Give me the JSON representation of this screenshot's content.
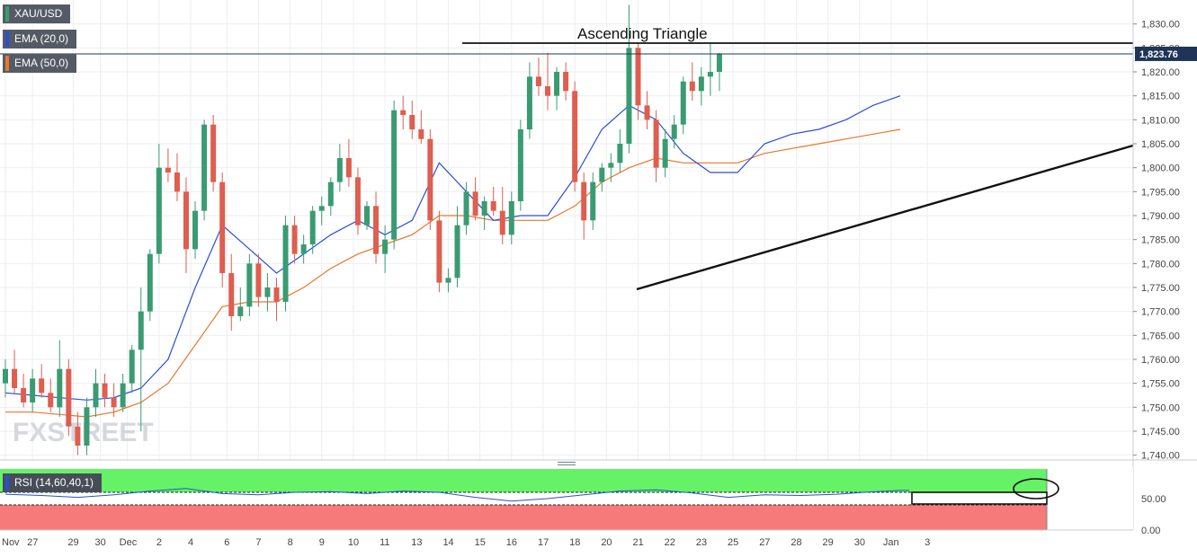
{
  "symbol": "XAU/USD",
  "indicators": [
    {
      "label": "EMA (20,0)",
      "color": "#2a4fd6"
    },
    {
      "label": "EMA (50,0)",
      "color": "#e8772e"
    }
  ],
  "annotation": "Ascending Triangle",
  "watermark": "FXSTREET",
  "current_price": "1,823.76",
  "rsi_label": "RSI (14,60,40,1)",
  "colors": {
    "bull": "#3a9b72",
    "bear": "#de5e4f",
    "ema20": "#2a4fd6",
    "ema50": "#e8772e",
    "rsi_line": "#2a4fd6",
    "rsi_upper": "#66f266",
    "rsi_lower": "#f77a7a",
    "price_badge": "#1f3557"
  },
  "chart_data": {
    "type": "candlestick",
    "instrument": "XAU/USD",
    "y_ticks": [
      "1,830.00",
      "1,825.00",
      "1,820.00",
      "1,815.00",
      "1,810.00",
      "1,805.00",
      "1,800.00",
      "1,795.00",
      "1,790.00",
      "1,785.00",
      "1,780.00",
      "1,775.00",
      "1,770.00",
      "1,765.00",
      "1,760.00",
      "1,755.00",
      "1,750.00",
      "1,745.00",
      "1,740.00"
    ],
    "y_tick_values": [
      1830,
      1825,
      1820,
      1815,
      1810,
      1805,
      1800,
      1795,
      1790,
      1785,
      1780,
      1775,
      1770,
      1765,
      1760,
      1755,
      1750,
      1745,
      1740
    ],
    "x_labels": [
      "Nov",
      "27",
      "29",
      "30",
      "Dec",
      "2",
      "4",
      "6",
      "7",
      "8",
      "9",
      "10",
      "11",
      "13",
      "14",
      "15",
      "16",
      "17",
      "18",
      "20",
      "21",
      "22",
      "23",
      "25",
      "27",
      "28",
      "29",
      "30",
      "Jan",
      "3"
    ],
    "x_label_positions": [
      0,
      3,
      7.5,
      10.5,
      13.5,
      17,
      20.5,
      24.5,
      28,
      31.5,
      35,
      38.5,
      42,
      45.5,
      49,
      52.5,
      56,
      59.5,
      63,
      66.5,
      70,
      73.5,
      77,
      80.5,
      84,
      87.5,
      91,
      94.5,
      98,
      102
    ],
    "ylim": [
      1739,
      1835
    ],
    "xlim": [
      0,
      104
    ],
    "candles": [
      [
        1755,
        1760,
        1752,
        1758
      ],
      [
        1758,
        1762,
        1753,
        1754
      ],
      [
        1754,
        1757,
        1750,
        1751
      ],
      [
        1751,
        1758,
        1749,
        1756
      ],
      [
        1756,
        1759,
        1752,
        1753
      ],
      [
        1753,
        1756,
        1749,
        1750
      ],
      [
        1750,
        1764,
        1748,
        1758
      ],
      [
        1758,
        1760,
        1744,
        1746
      ],
      [
        1746,
        1749,
        1740,
        1742
      ],
      [
        1742,
        1752,
        1740,
        1750
      ],
      [
        1750,
        1758,
        1748,
        1755
      ],
      [
        1755,
        1757,
        1750,
        1752
      ],
      [
        1752,
        1755,
        1748,
        1750
      ],
      [
        1750,
        1757,
        1749,
        1755
      ],
      [
        1755,
        1763,
        1753,
        1762
      ],
      [
        1762,
        1775,
        1745,
        1770
      ],
      [
        1770,
        1783,
        1768,
        1782
      ],
      [
        1782,
        1805,
        1780,
        1800
      ],
      [
        1800,
        1804,
        1797,
        1799
      ],
      [
        1799,
        1803,
        1793,
        1795
      ],
      [
        1795,
        1798,
        1778,
        1783
      ],
      [
        1783,
        1793,
        1781,
        1791
      ],
      [
        1791,
        1810,
        1789,
        1809
      ],
      [
        1809,
        1811,
        1795,
        1797
      ],
      [
        1797,
        1799,
        1775,
        1778
      ],
      [
        1778,
        1782,
        1766,
        1769
      ],
      [
        1769,
        1775,
        1768,
        1771
      ],
      [
        1771,
        1782,
        1769,
        1780
      ],
      [
        1780,
        1782,
        1771,
        1773
      ],
      [
        1773,
        1778,
        1770,
        1775
      ],
      [
        1775,
        1777,
        1768,
        1772
      ],
      [
        1772,
        1790,
        1770,
        1788
      ],
      [
        1788,
        1790,
        1780,
        1782
      ],
      [
        1782,
        1786,
        1780,
        1784
      ],
      [
        1784,
        1792,
        1782,
        1791
      ],
      [
        1791,
        1794,
        1788,
        1792
      ],
      [
        1792,
        1798,
        1790,
        1797
      ],
      [
        1797,
        1805,
        1795,
        1802
      ],
      [
        1802,
        1806,
        1796,
        1798
      ],
      [
        1798,
        1800,
        1786,
        1788
      ],
      [
        1788,
        1793,
        1787,
        1792
      ],
      [
        1792,
        1795,
        1780,
        1782
      ],
      [
        1782,
        1788,
        1778,
        1785
      ],
      [
        1785,
        1814,
        1783,
        1812
      ],
      [
        1812,
        1815,
        1808,
        1811
      ],
      [
        1811,
        1814,
        1806,
        1808
      ],
      [
        1808,
        1812,
        1805,
        1806
      ],
      [
        1806,
        1808,
        1787,
        1789
      ],
      [
        1789,
        1791,
        1774,
        1776
      ],
      [
        1776,
        1779,
        1774,
        1777
      ],
      [
        1777,
        1792,
        1775,
        1788
      ],
      [
        1788,
        1797,
        1786,
        1795
      ],
      [
        1795,
        1798,
        1789,
        1790
      ],
      [
        1790,
        1794,
        1787,
        1793
      ],
      [
        1793,
        1796,
        1790,
        1791
      ],
      [
        1791,
        1796,
        1784,
        1786
      ],
      [
        1786,
        1795,
        1784,
        1793
      ],
      [
        1793,
        1810,
        1791,
        1808
      ],
      [
        1808,
        1822,
        1806,
        1819
      ],
      [
        1819,
        1823,
        1815,
        1817
      ],
      [
        1817,
        1824,
        1812,
        1815
      ],
      [
        1815,
        1821,
        1812,
        1820
      ],
      [
        1820,
        1822,
        1814,
        1816
      ],
      [
        1816,
        1818,
        1795,
        1797
      ],
      [
        1797,
        1799,
        1785,
        1789
      ],
      [
        1789,
        1799,
        1787,
        1797
      ],
      [
        1797,
        1801,
        1795,
        1800
      ],
      [
        1800,
        1803,
        1797,
        1801
      ],
      [
        1801,
        1808,
        1799,
        1805
      ],
      [
        1805,
        1834,
        1803,
        1825
      ],
      [
        1825,
        1826,
        1810,
        1813
      ],
      [
        1813,
        1816,
        1808,
        1810
      ],
      [
        1810,
        1812,
        1797,
        1800
      ],
      [
        1800,
        1808,
        1798,
        1806
      ],
      [
        1806,
        1811,
        1804,
        1809
      ],
      [
        1809,
        1819,
        1807,
        1818
      ],
      [
        1818,
        1822,
        1814,
        1816
      ],
      [
        1816,
        1821,
        1813,
        1819
      ],
      [
        1819,
        1826,
        1815,
        1820
      ],
      [
        1820,
        1824,
        1816,
        1823.76
      ]
    ],
    "ema20": [
      [
        0,
        1753
      ],
      [
        3,
        1752.5
      ],
      [
        6,
        1752
      ],
      [
        9,
        1751.5
      ],
      [
        12,
        1752
      ],
      [
        15,
        1754
      ],
      [
        18,
        1760
      ],
      [
        21,
        1775
      ],
      [
        24,
        1788
      ],
      [
        27,
        1783
      ],
      [
        30,
        1778
      ],
      [
        33,
        1782
      ],
      [
        36,
        1786
      ],
      [
        39,
        1789
      ],
      [
        42,
        1786
      ],
      [
        45,
        1789
      ],
      [
        48,
        1801
      ],
      [
        51,
        1795
      ],
      [
        54,
        1789
      ],
      [
        57,
        1790
      ],
      [
        60,
        1790
      ],
      [
        63,
        1798
      ],
      [
        66,
        1808
      ],
      [
        69,
        1813
      ],
      [
        72,
        1810
      ],
      [
        75,
        1803
      ],
      [
        78,
        1799
      ],
      [
        81,
        1799
      ],
      [
        84,
        1805
      ],
      [
        87,
        1807
      ],
      [
        90,
        1808
      ],
      [
        93,
        1810
      ],
      [
        96,
        1813
      ],
      [
        99,
        1815
      ]
    ],
    "ema50": [
      [
        0,
        1749
      ],
      [
        3,
        1749
      ],
      [
        6,
        1748.5
      ],
      [
        9,
        1748
      ],
      [
        12,
        1749
      ],
      [
        15,
        1751
      ],
      [
        18,
        1755
      ],
      [
        21,
        1763
      ],
      [
        24,
        1771
      ],
      [
        27,
        1772
      ],
      [
        30,
        1772
      ],
      [
        33,
        1775
      ],
      [
        36,
        1779
      ],
      [
        39,
        1782
      ],
      [
        42,
        1784
      ],
      [
        45,
        1786
      ],
      [
        48,
        1790
      ],
      [
        51,
        1790
      ],
      [
        54,
        1789
      ],
      [
        57,
        1789
      ],
      [
        60,
        1789
      ],
      [
        63,
        1792
      ],
      [
        66,
        1797
      ],
      [
        69,
        1800
      ],
      [
        72,
        1802
      ],
      [
        75,
        1801
      ],
      [
        78,
        1801
      ],
      [
        81,
        1801
      ],
      [
        84,
        1803
      ],
      [
        87,
        1804
      ],
      [
        90,
        1805
      ],
      [
        93,
        1806
      ],
      [
        96,
        1807
      ],
      [
        99,
        1808
      ]
    ],
    "rsi": {
      "ylim": [
        0,
        100
      ],
      "y_ticks": [
        "50.00",
        "0.00"
      ],
      "y_tick_values": [
        50,
        0
      ],
      "upper_band": 60,
      "lower_band": 40,
      "series": [
        [
          0,
          57
        ],
        [
          4,
          55
        ],
        [
          8,
          52
        ],
        [
          12,
          56
        ],
        [
          16,
          62
        ],
        [
          20,
          66
        ],
        [
          24,
          58
        ],
        [
          28,
          56
        ],
        [
          32,
          60
        ],
        [
          36,
          61
        ],
        [
          40,
          58
        ],
        [
          44,
          62
        ],
        [
          48,
          60
        ],
        [
          52,
          52
        ],
        [
          56,
          46
        ],
        [
          60,
          50
        ],
        [
          64,
          56
        ],
        [
          68,
          62
        ],
        [
          72,
          64
        ],
        [
          76,
          59
        ],
        [
          80,
          52
        ],
        [
          84,
          56
        ],
        [
          88,
          55
        ],
        [
          92,
          57
        ],
        [
          95,
          60
        ],
        [
          99,
          63
        ],
        [
          100,
          63
        ]
      ]
    }
  }
}
